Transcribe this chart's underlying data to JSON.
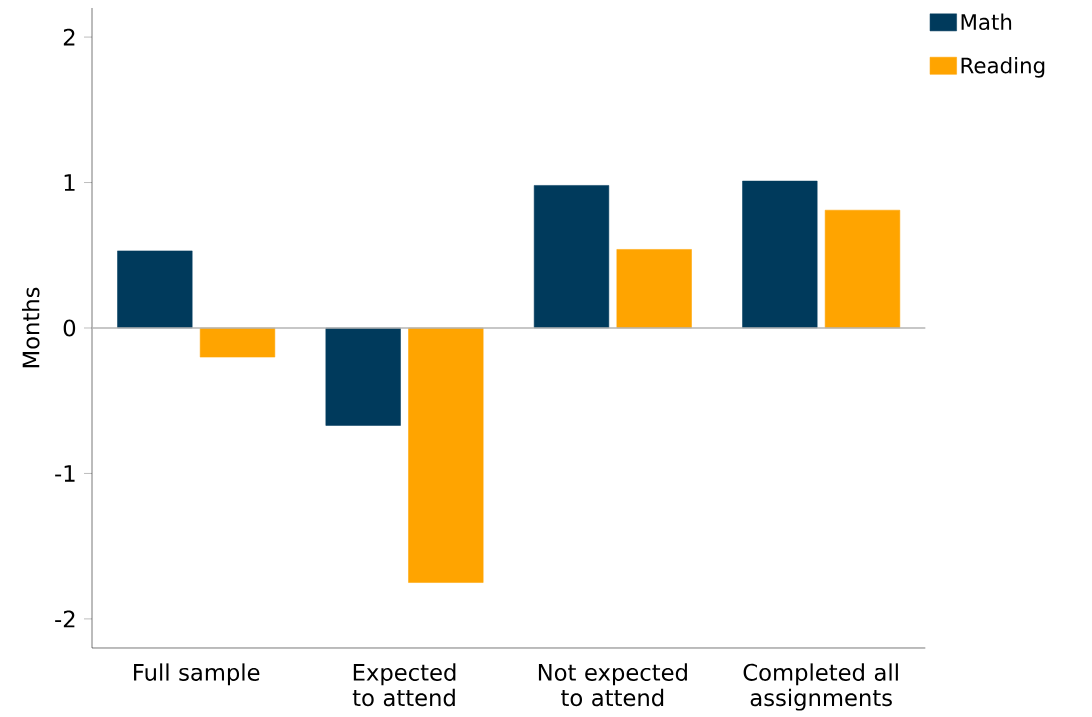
{
  "chart_data": {
    "type": "bar",
    "ylabel": "Months",
    "categories": [
      "Full sample",
      "Expected to attend",
      "Not expected to attend",
      "Completed all assignments"
    ],
    "series": [
      {
        "name": "Math",
        "color": "#003a5c",
        "values": [
          0.53,
          -0.67,
          0.98,
          1.01
        ]
      },
      {
        "name": "Reading",
        "color": "#ffa400",
        "values": [
          -0.2,
          -1.75,
          0.54,
          0.81
        ]
      }
    ],
    "ylim": [
      -2.2,
      2.2
    ],
    "yticks": [
      -2,
      -1,
      0,
      1,
      2
    ],
    "ref_lines": [
      {
        "axis": "y",
        "value": 0,
        "color": "#b4b4b4"
      }
    ],
    "legend": "top right",
    "grid": false
  }
}
